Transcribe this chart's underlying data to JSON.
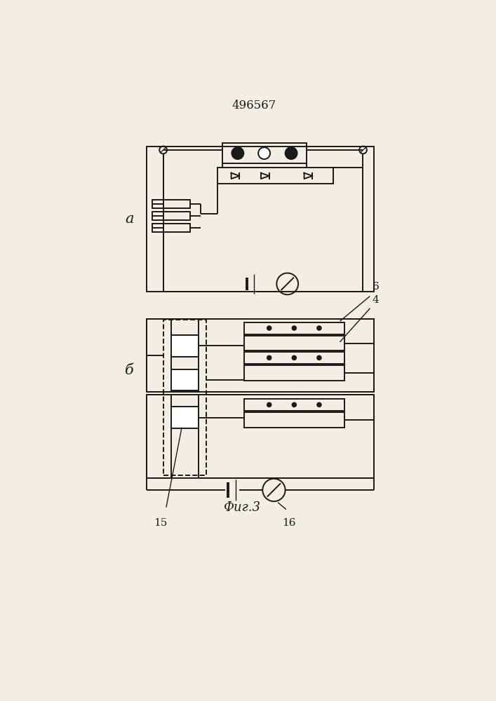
{
  "title": "496567",
  "fig_label": "Фиг.3",
  "label_a": "а",
  "label_b": "б",
  "bg_color": "#f2eee6",
  "line_color": "#1a1a1a",
  "line_width": 1.4
}
